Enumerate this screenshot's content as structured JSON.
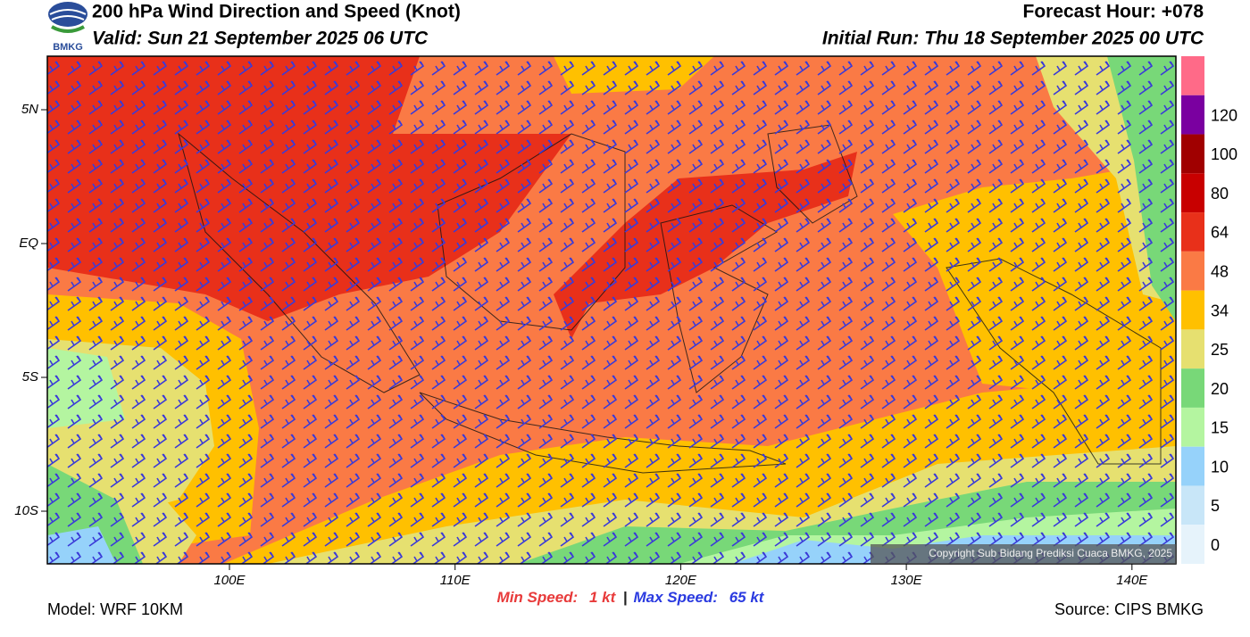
{
  "header": {
    "title": "200 hPa Wind Direction and Speed (Knot)",
    "valid": "Valid: Sun 21 September 2025 06 UTC",
    "forecast_hour": "Forecast Hour: +078",
    "initial_run": "Initial Run: Thu 18 September 2025 00 UTC",
    "logo_text": "BMKG"
  },
  "map": {
    "lat_labels": [
      "5N",
      "EQ",
      "5S",
      "10S"
    ],
    "lon_labels": [
      "100E",
      "110E",
      "120E",
      "130E",
      "140E"
    ],
    "copyright": "Copyright Sub Bidang Prediksi Cuaca BMKG, 2025"
  },
  "colorbar": {
    "levels": [
      0,
      5,
      10,
      15,
      20,
      25,
      34,
      48,
      64,
      80,
      100,
      120
    ],
    "colors": [
      "#e6f3fb",
      "#c8e6f8",
      "#96d2fa",
      "#b4f5a0",
      "#78d878",
      "#e6e070",
      "#ffc000",
      "#fa7a45",
      "#e8301a",
      "#c80000",
      "#a00000",
      "#7a00a0",
      "#ff6a88"
    ]
  },
  "footer": {
    "model": "Model: WRF 10KM",
    "min_label": "Min Speed:",
    "min_value": "1 kt",
    "separator": "|",
    "max_label": "Max Speed:",
    "max_value": "65 kt",
    "source": "Source: CIPS BMKG"
  }
}
